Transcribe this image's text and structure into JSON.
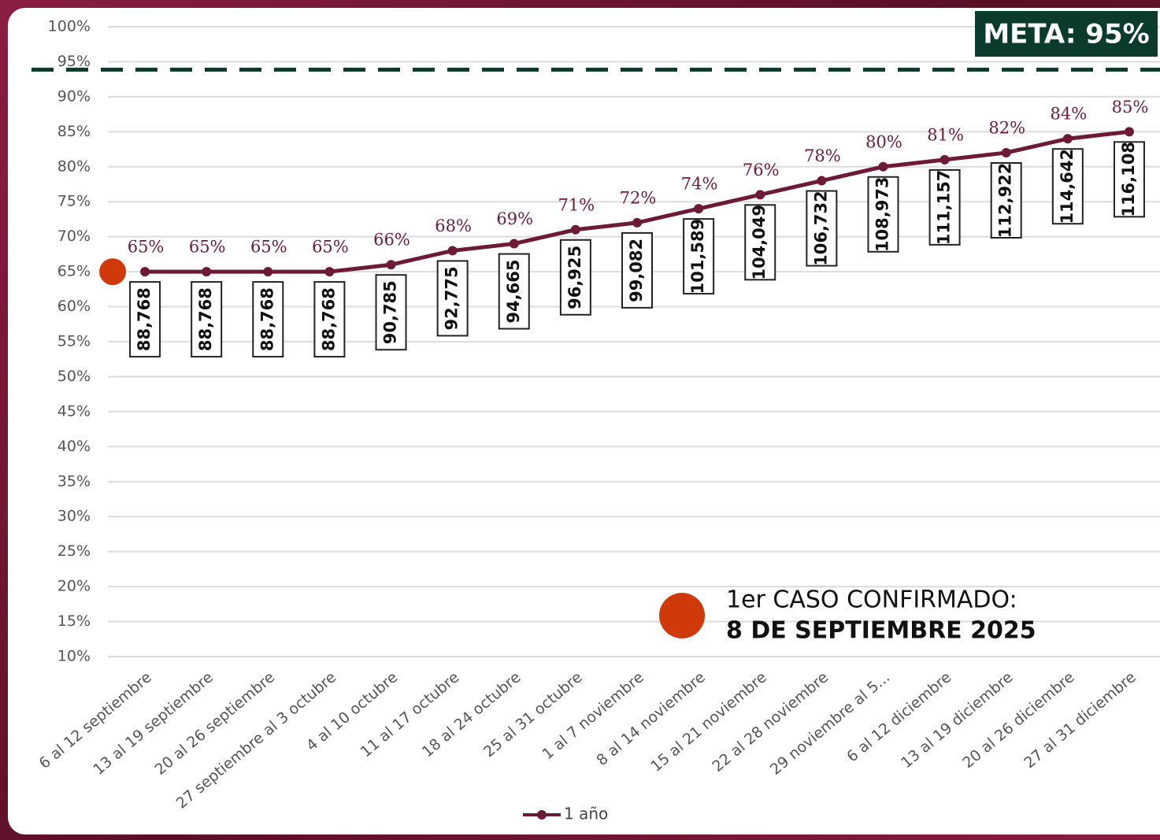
{
  "chart_data": {
    "type": "line",
    "categories": [
      "6 al 12 septiembre",
      "13 al 19 septiembre",
      "20 al 26 septiembre",
      "27 septiembre al 3 octubre",
      "4 al 10 octubre",
      "11 al 17 octubre",
      "18 al 24 octubre",
      "25 al 31 octubre",
      "1 al 7 noviembre",
      "8 al 14 noviembre",
      "15 al 21 noviembre",
      "22 al 28 noviembre",
      "29 noviembre al 5...",
      "6 al 12 diciembre",
      "13 al 19 diciembre",
      "20 al 26 diciembre",
      "27 al 31 diciembre"
    ],
    "series": [
      {
        "name": "1 año",
        "color": "#6d1a36",
        "values": [
          65,
          65,
          65,
          65,
          66,
          68,
          69,
          71,
          72,
          74,
          76,
          78,
          80,
          81,
          82,
          84,
          85
        ],
        "value_labels": [
          "65%",
          "65%",
          "65%",
          "65%",
          "66%",
          "68%",
          "69%",
          "71%",
          "72%",
          "74%",
          "76%",
          "78%",
          "80%",
          "81%",
          "82%",
          "84%",
          "85%"
        ],
        "counts": [
          88768,
          88768,
          88768,
          88768,
          90785,
          92775,
          94665,
          96925,
          99082,
          101589,
          104049,
          106732,
          108973,
          111157,
          112922,
          114642,
          116108
        ],
        "count_labels": [
          "88,768",
          "88,768",
          "88,768",
          "88,768",
          "90,785",
          "92,775",
          "94,665",
          "96,925",
          "99,082",
          "101,589",
          "104,049",
          "106,732",
          "108,973",
          "111,157",
          "112,922",
          "114,642",
          "116,108"
        ]
      }
    ],
    "ylim": [
      10,
      100
    ],
    "yticks": [
      {
        "value": 10,
        "label": "10%"
      },
      {
        "value": 15,
        "label": "15%"
      },
      {
        "value": 20,
        "label": "20%"
      },
      {
        "value": 25,
        "label": "25%"
      },
      {
        "value": 30,
        "label": "30%"
      },
      {
        "value": 35,
        "label": "35%"
      },
      {
        "value": 40,
        "label": "40%"
      },
      {
        "value": 45,
        "label": "45%"
      },
      {
        "value": 50,
        "label": "50%"
      },
      {
        "value": 55,
        "label": "55%"
      },
      {
        "value": 60,
        "label": "60%"
      },
      {
        "value": 65,
        "label": "65%"
      },
      {
        "value": 70,
        "label": "70%"
      },
      {
        "value": 75,
        "label": "75%"
      },
      {
        "value": 80,
        "label": "80%"
      },
      {
        "value": 85,
        "label": "85%"
      },
      {
        "value": 90,
        "label": "90%"
      },
      {
        "value": 95,
        "label": "95%"
      },
      {
        "value": 100,
        "label": "100%"
      }
    ],
    "grid": true,
    "target": {
      "value": 95,
      "label": "META: 95%",
      "color": "#0b3b2c"
    },
    "annotation": {
      "lines": [
        "1er CASO CONFIRMADO:",
        "8 DE SEPTIEMBRE 2025"
      ],
      "color": "#d03a0a"
    }
  }
}
